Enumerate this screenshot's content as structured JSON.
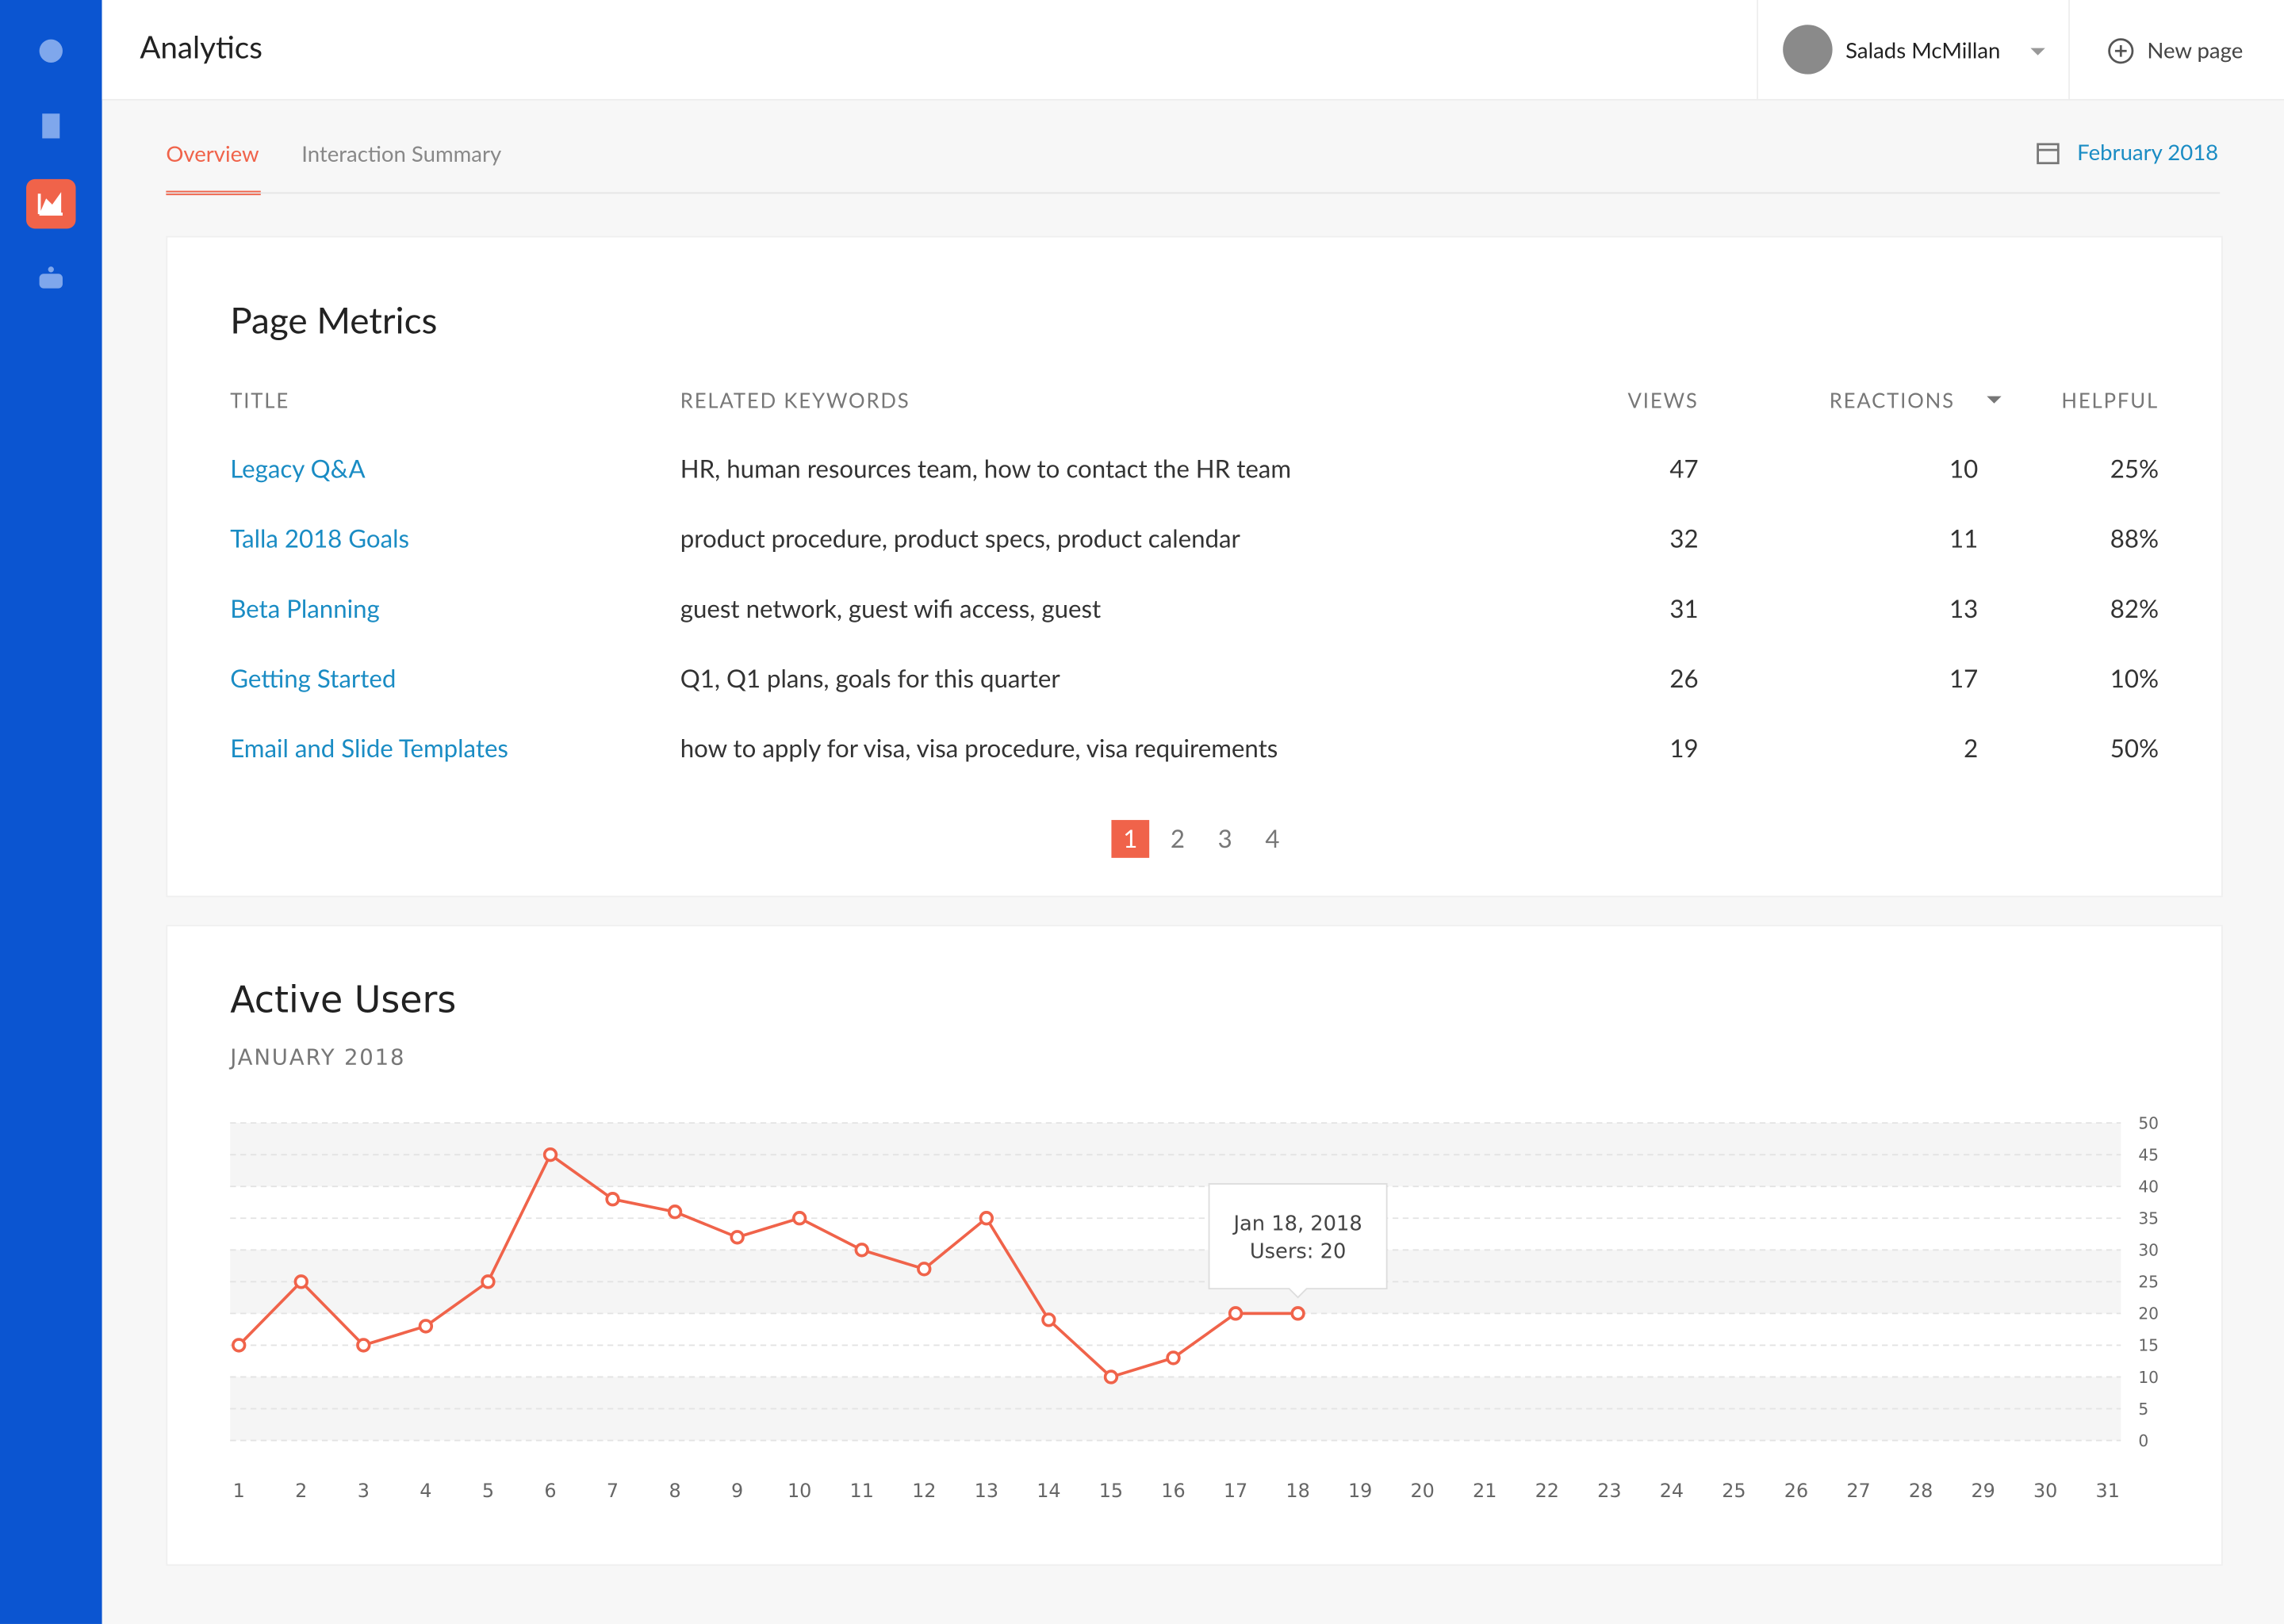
{
  "header": {
    "title": "Analytics",
    "user": "Salads McMillan",
    "new_page": "New page"
  },
  "tabs": [
    "Overview",
    "Interaction Summary"
  ],
  "date_picker": "February 2018",
  "table": {
    "title": "Page Metrics",
    "columns": [
      "TITLE",
      "RELATED KEYWORDS",
      "VIEWS",
      "REACTIONS",
      "HELPFUL"
    ],
    "rows": [
      [
        "Legacy Q&A",
        "HR, human resources team, how to contact the HR team",
        47,
        10,
        "25%"
      ],
      [
        "Talla 2018 Goals",
        "product procedure, product specs, product calendar",
        32,
        11,
        "88%"
      ],
      [
        "Beta Planning",
        "guest network, guest wifi access, guest",
        31,
        13,
        "82%"
      ],
      [
        "Getting Started",
        "Q1, Q1 plans, goals for this quarter",
        26,
        17,
        "10%"
      ],
      [
        "Email and Slide Templates",
        "how to apply for visa, visa procedure, visa requirements",
        19,
        2,
        "50%"
      ]
    ]
  },
  "pagination": [
    1,
    2,
    3,
    4
  ],
  "chart_data": {
    "type": "line",
    "title": "Active Users",
    "subtitle": "JANUARY 2018",
    "categories": [
      "1",
      "2",
      "3",
      "4",
      "5",
      "6",
      "7",
      "8",
      "9",
      "10",
      "11",
      "12",
      "13",
      "14",
      "15",
      "16",
      "17",
      "18",
      "19",
      "20",
      "21",
      "22",
      "23",
      "24",
      "25",
      "26",
      "27",
      "28",
      "29",
      "30",
      "31"
    ],
    "series": [
      {
        "name": "Users",
        "color": "#f0634a",
        "values": [
          15,
          25,
          15,
          18,
          25,
          45,
          38,
          36,
          32,
          35,
          30,
          27,
          35,
          19,
          10,
          13,
          20,
          20,
          null,
          null,
          null,
          null,
          null,
          null,
          null,
          null,
          null,
          null,
          null,
          null,
          null
        ]
      }
    ],
    "ylim": [
      0,
      50
    ],
    "yticks": [
      0,
      5,
      10,
      15,
      20,
      25,
      30,
      35,
      40,
      45,
      50
    ],
    "grid": true,
    "tooltip": {
      "title": "Jan 18, 2018",
      "label": "Users: 20"
    }
  }
}
